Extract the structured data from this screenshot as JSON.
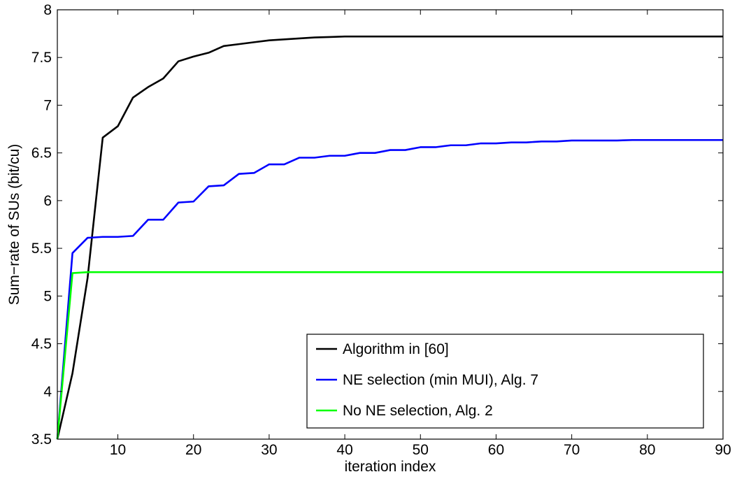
{
  "chart_data": {
    "type": "line",
    "title": "",
    "xlabel": "iteration index",
    "ylabel": "Sum−rate of SUs (bit/cu)",
    "xlim": [
      2,
      90
    ],
    "ylim": [
      3.5,
      8
    ],
    "xticks": [
      10,
      20,
      30,
      40,
      50,
      60,
      70,
      80,
      90
    ],
    "yticks": [
      3.5,
      4,
      4.5,
      5,
      5.5,
      6,
      6.5,
      7,
      7.5,
      8
    ],
    "xtick_labels": [
      "10",
      "20",
      "30",
      "40",
      "50",
      "60",
      "70",
      "80",
      "90"
    ],
    "ytick_labels": [
      "3.5",
      "4",
      "4.5",
      "5",
      "5.5",
      "6",
      "6.5",
      "7",
      "7.5",
      "8"
    ],
    "grid": false,
    "legend_position": "bottom-right",
    "series": [
      {
        "name": "Algorithm in [60]",
        "color": "#000000",
        "x": [
          2,
          4,
          6,
          8,
          10,
          12,
          14,
          16,
          18,
          20,
          22,
          24,
          26,
          28,
          30,
          32,
          34,
          36,
          38,
          40,
          45,
          50,
          60,
          70,
          80,
          90
        ],
        "y": [
          3.5,
          4.19,
          5.19,
          6.66,
          6.78,
          7.08,
          7.19,
          7.28,
          7.46,
          7.51,
          7.55,
          7.62,
          7.64,
          7.66,
          7.68,
          7.69,
          7.7,
          7.71,
          7.715,
          7.72,
          7.72,
          7.72,
          7.72,
          7.72,
          7.72,
          7.72
        ]
      },
      {
        "name": "NE selection (min MUI), Alg. 7",
        "color": "#0000ff",
        "x": [
          2,
          4,
          6,
          8,
          10,
          12,
          14,
          16,
          18,
          20,
          22,
          24,
          26,
          28,
          30,
          32,
          34,
          36,
          38,
          40,
          42,
          44,
          46,
          48,
          50,
          52,
          54,
          56,
          58,
          60,
          62,
          64,
          66,
          68,
          70,
          72,
          74,
          76,
          78,
          80,
          82,
          84,
          86,
          88,
          90
        ],
        "y": [
          3.5,
          5.45,
          5.61,
          5.62,
          5.62,
          5.63,
          5.8,
          5.8,
          5.98,
          5.99,
          6.15,
          6.16,
          6.28,
          6.29,
          6.38,
          6.38,
          6.45,
          6.45,
          6.47,
          6.47,
          6.5,
          6.5,
          6.53,
          6.53,
          6.56,
          6.56,
          6.58,
          6.58,
          6.6,
          6.6,
          6.61,
          6.61,
          6.62,
          6.62,
          6.63,
          6.63,
          6.63,
          6.63,
          6.635,
          6.635,
          6.635,
          6.635,
          6.635,
          6.635,
          6.635
        ]
      },
      {
        "name": "No NE selection, Alg. 2",
        "color": "#00ff00",
        "x": [
          2,
          4,
          6,
          8,
          10,
          20,
          30,
          40,
          50,
          60,
          70,
          80,
          90
        ],
        "y": [
          3.5,
          5.24,
          5.25,
          5.25,
          5.25,
          5.25,
          5.25,
          5.25,
          5.25,
          5.25,
          5.25,
          5.25,
          5.25
        ]
      }
    ]
  }
}
